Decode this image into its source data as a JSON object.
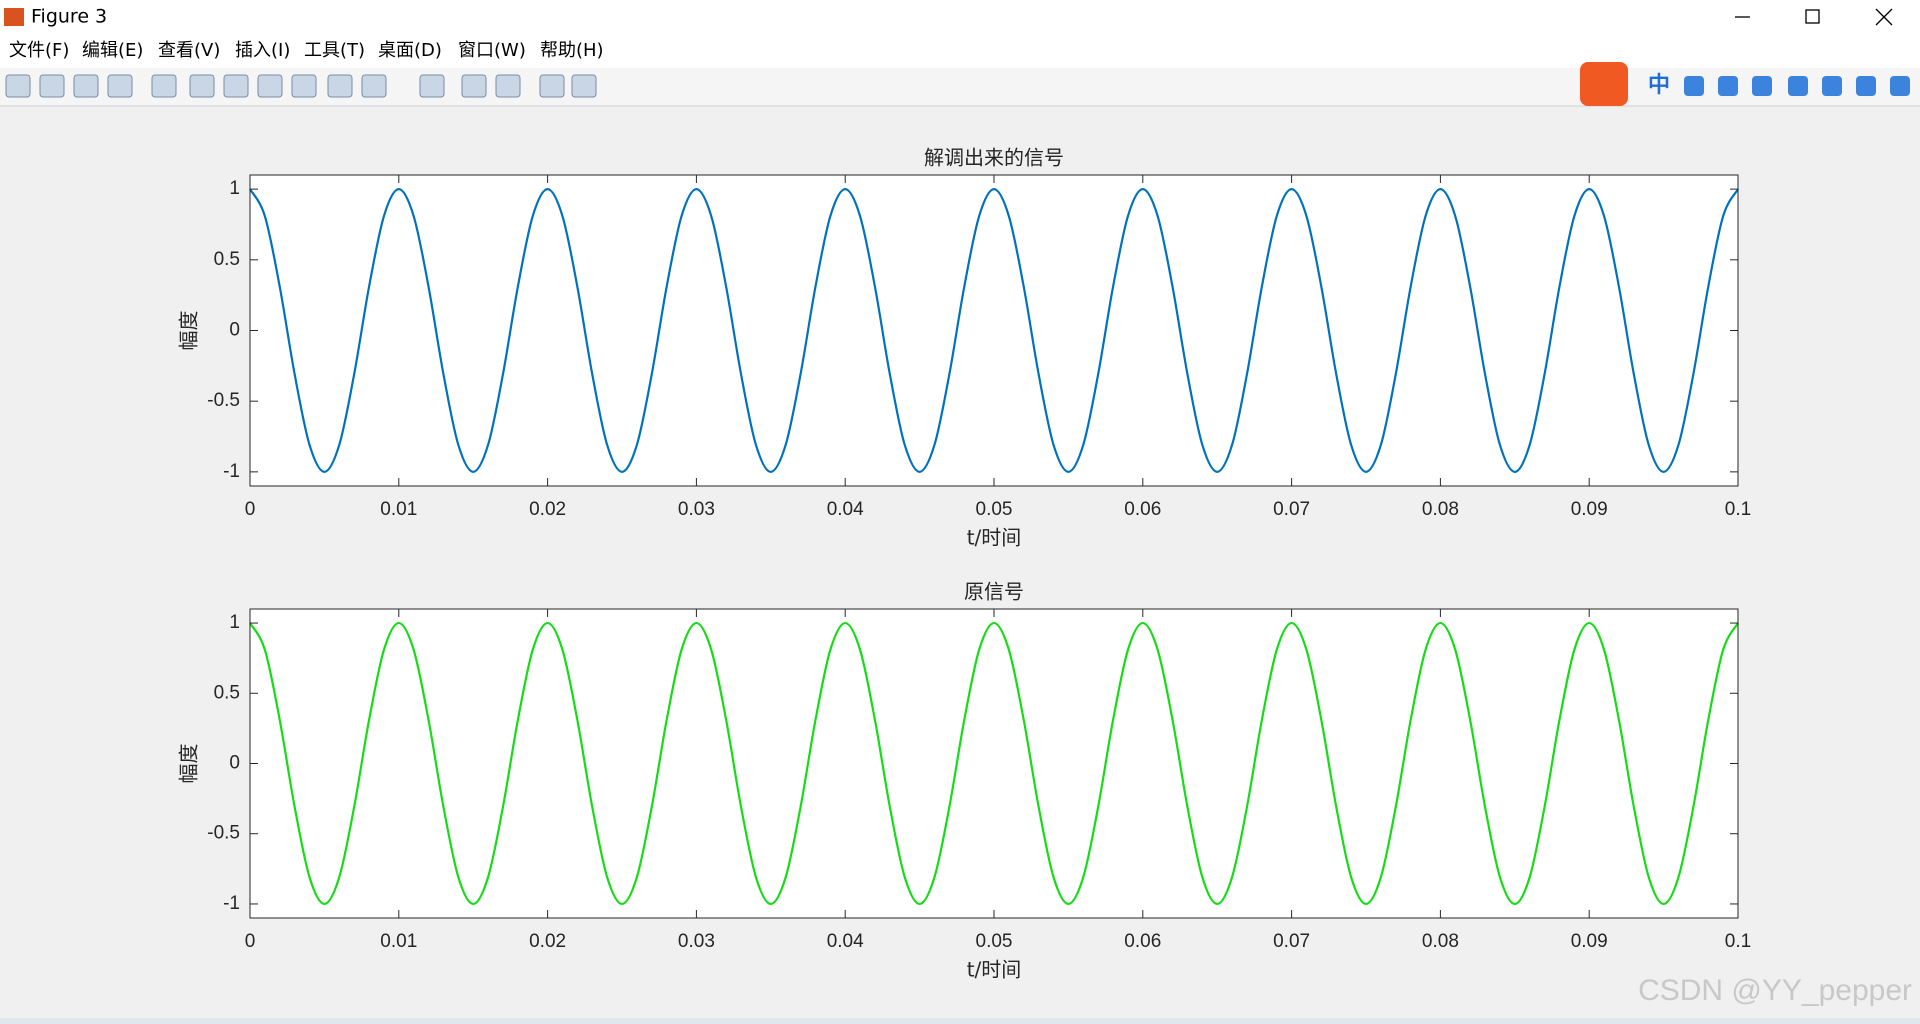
{
  "window": {
    "title": "Figure 3",
    "menu": [
      "文件(F)",
      "编辑(E)",
      "查看(V)",
      "插入(I)",
      "工具(T)",
      "桌面(D)",
      "窗口(W)",
      "帮助(H)"
    ],
    "ime_label": "中",
    "watermark": "CSDN @YY_pepper"
  },
  "chart_data": [
    {
      "type": "line",
      "title": "解调出来的信号",
      "x_label": "t/时间",
      "y_label": "幅度",
      "x": [
        0,
        0.001,
        0.002,
        0.003,
        0.004,
        0.005,
        0.006,
        0.007,
        0.008,
        0.009,
        0.01,
        0.011,
        0.012,
        0.013,
        0.014,
        0.015,
        0.016,
        0.017,
        0.018,
        0.019,
        0.02,
        0.021,
        0.022,
        0.023,
        0.024,
        0.025,
        0.026,
        0.027,
        0.028,
        0.029,
        0.03,
        0.031,
        0.032,
        0.033,
        0.034,
        0.035,
        0.036,
        0.037,
        0.038,
        0.039,
        0.04,
        0.041,
        0.042,
        0.043,
        0.044,
        0.045,
        0.046,
        0.047,
        0.048,
        0.049,
        0.05,
        0.051,
        0.052,
        0.053,
        0.054,
        0.055,
        0.056,
        0.057,
        0.058,
        0.059,
        0.06,
        0.061,
        0.062,
        0.063,
        0.064,
        0.065,
        0.066,
        0.067,
        0.068,
        0.069,
        0.07,
        0.071,
        0.072,
        0.073,
        0.074,
        0.075,
        0.076,
        0.077,
        0.078,
        0.079,
        0.08,
        0.081,
        0.082,
        0.083,
        0.084,
        0.085,
        0.086,
        0.087,
        0.088,
        0.089,
        0.09,
        0.091,
        0.092,
        0.093,
        0.094,
        0.095,
        0.096,
        0.097,
        0.098,
        0.099,
        0.1
      ],
      "series": [
        {
          "color": "#0072bd",
          "values": [
            1,
            0.809,
            0.309,
            -0.309,
            -0.809,
            -1,
            -0.809,
            -0.309,
            0.309,
            0.809,
            1,
            0.809,
            0.309,
            -0.309,
            -0.809,
            -1,
            -0.809,
            -0.309,
            0.309,
            0.809,
            1,
            0.809,
            0.309,
            -0.309,
            -0.809,
            -1,
            -0.809,
            -0.309,
            0.309,
            0.809,
            1,
            0.809,
            0.309,
            -0.309,
            -0.809,
            -1,
            -0.809,
            -0.309,
            0.309,
            0.809,
            1,
            0.809,
            0.309,
            -0.309,
            -0.809,
            -1,
            -0.809,
            -0.309,
            0.309,
            0.809,
            1,
            0.809,
            0.309,
            -0.309,
            -0.809,
            -1,
            -0.809,
            -0.309,
            0.309,
            0.809,
            1,
            0.809,
            0.309,
            -0.309,
            -0.809,
            -1,
            -0.809,
            -0.309,
            0.309,
            0.809,
            1,
            0.809,
            0.309,
            -0.309,
            -0.809,
            -1,
            -0.809,
            -0.309,
            0.309,
            0.809,
            1,
            0.809,
            0.309,
            -0.309,
            -0.809,
            -1,
            -0.809,
            -0.309,
            0.309,
            0.809,
            1,
            0.809,
            0.309,
            -0.309,
            -0.809,
            -1,
            -0.809,
            -0.309,
            0.309,
            0.809,
            1
          ]
        }
      ],
      "xlim": [
        0,
        0.1
      ],
      "ylim": [
        -1.1,
        1.1
      ],
      "xticks": [
        0,
        0.01,
        0.02,
        0.03,
        0.04,
        0.05,
        0.06,
        0.07,
        0.08,
        0.09,
        0.1
      ],
      "yticks": [
        -1,
        -0.5,
        0,
        0.5,
        1
      ],
      "box": true
    },
    {
      "type": "line",
      "title": "原信号",
      "x_label": "t/时间",
      "y_label": "幅度",
      "x": [
        0,
        0.001,
        0.002,
        0.003,
        0.004,
        0.005,
        0.006,
        0.007,
        0.008,
        0.009,
        0.01,
        0.011,
        0.012,
        0.013,
        0.014,
        0.015,
        0.016,
        0.017,
        0.018,
        0.019,
        0.02,
        0.021,
        0.022,
        0.023,
        0.024,
        0.025,
        0.026,
        0.027,
        0.028,
        0.029,
        0.03,
        0.031,
        0.032,
        0.033,
        0.034,
        0.035,
        0.036,
        0.037,
        0.038,
        0.039,
        0.04,
        0.041,
        0.042,
        0.043,
        0.044,
        0.045,
        0.046,
        0.047,
        0.048,
        0.049,
        0.05,
        0.051,
        0.052,
        0.053,
        0.054,
        0.055,
        0.056,
        0.057,
        0.058,
        0.059,
        0.06,
        0.061,
        0.062,
        0.063,
        0.064,
        0.065,
        0.066,
        0.067,
        0.068,
        0.069,
        0.07,
        0.071,
        0.072,
        0.073,
        0.074,
        0.075,
        0.076,
        0.077,
        0.078,
        0.079,
        0.08,
        0.081,
        0.082,
        0.083,
        0.084,
        0.085,
        0.086,
        0.087,
        0.088,
        0.089,
        0.09,
        0.091,
        0.092,
        0.093,
        0.094,
        0.095,
        0.096,
        0.097,
        0.098,
        0.099,
        0.1
      ],
      "series": [
        {
          "color": "#16dc16",
          "values": [
            1,
            0.809,
            0.309,
            -0.309,
            -0.809,
            -1,
            -0.809,
            -0.309,
            0.309,
            0.809,
            1,
            0.809,
            0.309,
            -0.309,
            -0.809,
            -1,
            -0.809,
            -0.309,
            0.309,
            0.809,
            1,
            0.809,
            0.309,
            -0.309,
            -0.809,
            -1,
            -0.809,
            -0.309,
            0.309,
            0.809,
            1,
            0.809,
            0.309,
            -0.309,
            -0.809,
            -1,
            -0.809,
            -0.309,
            0.309,
            0.809,
            1,
            0.809,
            0.309,
            -0.309,
            -0.809,
            -1,
            -0.809,
            -0.309,
            0.309,
            0.809,
            1,
            0.809,
            0.309,
            -0.309,
            -0.809,
            -1,
            -0.809,
            -0.309,
            0.309,
            0.809,
            1,
            0.809,
            0.309,
            -0.309,
            -0.809,
            -1,
            -0.809,
            -0.309,
            0.309,
            0.809,
            1,
            0.809,
            0.309,
            -0.309,
            -0.809,
            -1,
            -0.809,
            -0.309,
            0.309,
            0.809,
            1,
            0.809,
            0.309,
            -0.309,
            -0.809,
            -1,
            -0.809,
            -0.309,
            0.309,
            0.809,
            1,
            0.809,
            0.309,
            -0.309,
            -0.809,
            -1,
            -0.809,
            -0.309,
            0.309,
            0.809,
            1
          ]
        }
      ],
      "xlim": [
        0,
        0.1
      ],
      "ylim": [
        -1.1,
        1.1
      ],
      "xticks": [
        0,
        0.01,
        0.02,
        0.03,
        0.04,
        0.05,
        0.06,
        0.07,
        0.08,
        0.09,
        0.1
      ],
      "yticks": [
        -1,
        -0.5,
        0,
        0.5,
        1
      ],
      "box": true
    }
  ]
}
